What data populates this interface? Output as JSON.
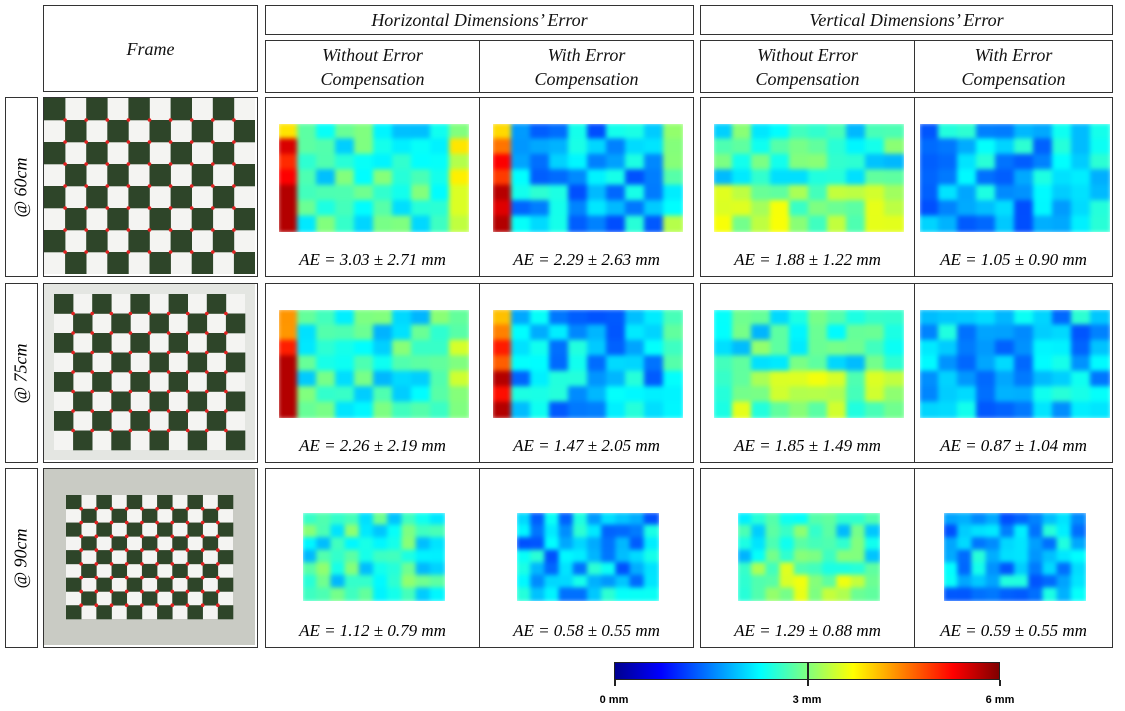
{
  "header": {
    "frame": "Frame",
    "groups": [
      {
        "title": "Horizontal Dimensions’ Error",
        "columns": [
          "Without Error Compensation",
          "With Error Compensation"
        ]
      },
      {
        "title": "Vertical Dimensions’ Error",
        "columns": [
          "Without Error Compensation",
          "With Error Compensation"
        ]
      }
    ]
  },
  "rows": [
    {
      "label": "@ 60cm",
      "errors": [
        "AE = 3.03 ± 2.71 mm",
        "AE = 2.29 ± 2.63 mm",
        "AE = 1.88 ± 1.22 mm",
        "AE = 1.05 ± 0.90 mm"
      ]
    },
    {
      "label": "@ 75cm",
      "errors": [
        "AE = 2.26 ± 2.19 mm",
        "AE = 1.47 ± 2.05 mm",
        "AE = 1.85 ± 1.49 mm",
        "AE = 0.87 ± 1.04 mm"
      ]
    },
    {
      "label": "@ 90cm",
      "errors": [
        "AE = 1.12 ± 0.79 mm",
        "AE = 0.58 ± 0.55 mm",
        "AE = 1.29 ± 0.88 mm",
        "AE = 0.59 ± 0.55 mm"
      ]
    }
  ],
  "colorbar": {
    "labels": [
      "0 mm",
      "3 mm",
      "6 mm"
    ]
  }
}
